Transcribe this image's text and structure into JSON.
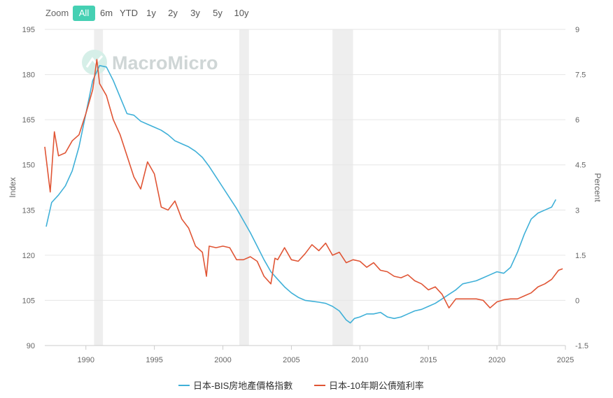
{
  "toolbar": {
    "zoom_label": "Zoom",
    "buttons": [
      {
        "label": "All",
        "active": true
      },
      {
        "label": "6m",
        "active": false
      },
      {
        "label": "YTD",
        "active": false
      },
      {
        "label": "1y",
        "active": false
      },
      {
        "label": "2y",
        "active": false
      },
      {
        "label": "3y",
        "active": false
      },
      {
        "label": "5y",
        "active": false
      },
      {
        "label": "10y",
        "active": false
      }
    ]
  },
  "watermark": "MacroMicro",
  "chart_data": {
    "type": "line",
    "x_axis": {
      "type": "date",
      "ticks": [
        "1990",
        "1995",
        "2000",
        "2005",
        "2010",
        "2015",
        "2020",
        "2025"
      ],
      "range": [
        1987.0,
        2025.0
      ]
    },
    "y_left": {
      "label": "Index",
      "ticks": [
        90,
        105,
        120,
        135,
        150,
        165,
        180,
        195
      ],
      "range": [
        90,
        195
      ]
    },
    "y_right": {
      "label": "Percent",
      "ticks": [
        "-1.5",
        "0",
        "1.5",
        "3",
        "4.5",
        "6",
        "7.5",
        "9"
      ],
      "range": [
        -1.5,
        9
      ]
    },
    "recessions": [
      [
        1990.6,
        1991.25
      ],
      [
        2001.2,
        2001.9
      ],
      [
        2008.0,
        2009.5
      ],
      [
        2020.1,
        2020.3
      ]
    ],
    "grid": true,
    "legend_position": "bottom",
    "series": [
      {
        "name": "日本-BIS房地產價格指數",
        "axis": "left",
        "color": "#3fb0d8",
        "points": [
          [
            1987.1,
            129.5
          ],
          [
            1987.5,
            137.5
          ],
          [
            1988.0,
            140
          ],
          [
            1988.5,
            143
          ],
          [
            1989.0,
            148
          ],
          [
            1989.5,
            156
          ],
          [
            1990.0,
            167
          ],
          [
            1990.5,
            178
          ],
          [
            1991.0,
            183
          ],
          [
            1991.5,
            182.5
          ],
          [
            1992.0,
            178
          ],
          [
            1992.5,
            172.5
          ],
          [
            1993.0,
            167
          ],
          [
            1993.5,
            166.5
          ],
          [
            1994.0,
            164.5
          ],
          [
            1994.5,
            163.5
          ],
          [
            1995.0,
            162.5
          ],
          [
            1995.5,
            161.5
          ],
          [
            1996.0,
            160
          ],
          [
            1996.5,
            158
          ],
          [
            1997.0,
            157
          ],
          [
            1997.5,
            156
          ],
          [
            1998.0,
            154.5
          ],
          [
            1998.5,
            152.5
          ],
          [
            1999.0,
            149.5
          ],
          [
            1999.5,
            146
          ],
          [
            2000.0,
            142.5
          ],
          [
            2000.5,
            139
          ],
          [
            2001.0,
            135.5
          ],
          [
            2001.5,
            131.5
          ],
          [
            2002.0,
            127.5
          ],
          [
            2002.5,
            123
          ],
          [
            2003.0,
            118.5
          ],
          [
            2003.5,
            114.5
          ],
          [
            2004.0,
            112
          ],
          [
            2004.5,
            109.5
          ],
          [
            2005.0,
            107.5
          ],
          [
            2005.5,
            106
          ],
          [
            2006.0,
            105
          ],
          [
            2006.5,
            104.7
          ],
          [
            2007.0,
            104.4
          ],
          [
            2007.5,
            104
          ],
          [
            2008.0,
            103
          ],
          [
            2008.5,
            101.5
          ],
          [
            2009.0,
            98.5
          ],
          [
            2009.3,
            97.5
          ],
          [
            2009.6,
            99
          ],
          [
            2010.0,
            99.5
          ],
          [
            2010.5,
            100.5
          ],
          [
            2011.0,
            100.5
          ],
          [
            2011.5,
            101
          ],
          [
            2012.0,
            99.5
          ],
          [
            2012.5,
            99
          ],
          [
            2013.0,
            99.5
          ],
          [
            2013.5,
            100.5
          ],
          [
            2014.0,
            101.5
          ],
          [
            2014.5,
            102
          ],
          [
            2015.0,
            103
          ],
          [
            2015.5,
            104
          ],
          [
            2016.0,
            105.5
          ],
          [
            2016.5,
            107
          ],
          [
            2017.0,
            108.5
          ],
          [
            2017.5,
            110.5
          ],
          [
            2018.0,
            111
          ],
          [
            2018.5,
            111.5
          ],
          [
            2019.0,
            112.5
          ],
          [
            2019.5,
            113.5
          ],
          [
            2020.0,
            114.5
          ],
          [
            2020.5,
            114
          ],
          [
            2021.0,
            116
          ],
          [
            2021.5,
            121
          ],
          [
            2022.0,
            127
          ],
          [
            2022.5,
            132
          ],
          [
            2023.0,
            134
          ],
          [
            2023.5,
            135
          ],
          [
            2024.0,
            136
          ],
          [
            2024.3,
            138.5
          ]
        ]
      },
      {
        "name": "日本-10年期公債殖利率",
        "axis": "right",
        "color": "#e05535",
        "points": [
          [
            1987.0,
            5.1
          ],
          [
            1987.4,
            3.6
          ],
          [
            1987.7,
            5.6
          ],
          [
            1988.0,
            4.8
          ],
          [
            1988.5,
            4.9
          ],
          [
            1989.0,
            5.3
          ],
          [
            1989.5,
            5.5
          ],
          [
            1990.0,
            6.2
          ],
          [
            1990.5,
            7.0
          ],
          [
            1990.8,
            8.0
          ],
          [
            1991.0,
            7.2
          ],
          [
            1991.5,
            6.8
          ],
          [
            1992.0,
            6.0
          ],
          [
            1992.5,
            5.5
          ],
          [
            1993.0,
            4.8
          ],
          [
            1993.5,
            4.1
          ],
          [
            1994.0,
            3.7
          ],
          [
            1994.5,
            4.6
          ],
          [
            1995.0,
            4.2
          ],
          [
            1995.5,
            3.1
          ],
          [
            1996.0,
            3.0
          ],
          [
            1996.5,
            3.3
          ],
          [
            1997.0,
            2.7
          ],
          [
            1997.5,
            2.4
          ],
          [
            1998.0,
            1.8
          ],
          [
            1998.5,
            1.6
          ],
          [
            1998.8,
            0.8
          ],
          [
            1999.0,
            1.8
          ],
          [
            1999.5,
            1.75
          ],
          [
            2000.0,
            1.8
          ],
          [
            2000.5,
            1.75
          ],
          [
            2001.0,
            1.35
          ],
          [
            2001.5,
            1.35
          ],
          [
            2002.0,
            1.45
          ],
          [
            2002.5,
            1.3
          ],
          [
            2003.0,
            0.8
          ],
          [
            2003.5,
            0.55
          ],
          [
            2003.8,
            1.4
          ],
          [
            2004.0,
            1.35
          ],
          [
            2004.5,
            1.75
          ],
          [
            2005.0,
            1.35
          ],
          [
            2005.5,
            1.3
          ],
          [
            2006.0,
            1.55
          ],
          [
            2006.5,
            1.85
          ],
          [
            2007.0,
            1.65
          ],
          [
            2007.5,
            1.9
          ],
          [
            2008.0,
            1.5
          ],
          [
            2008.5,
            1.6
          ],
          [
            2009.0,
            1.25
          ],
          [
            2009.5,
            1.35
          ],
          [
            2010.0,
            1.3
          ],
          [
            2010.5,
            1.1
          ],
          [
            2011.0,
            1.25
          ],
          [
            2011.5,
            1.0
          ],
          [
            2012.0,
            0.95
          ],
          [
            2012.5,
            0.8
          ],
          [
            2013.0,
            0.75
          ],
          [
            2013.5,
            0.85
          ],
          [
            2014.0,
            0.65
          ],
          [
            2014.5,
            0.55
          ],
          [
            2015.0,
            0.35
          ],
          [
            2015.5,
            0.45
          ],
          [
            2016.0,
            0.2
          ],
          [
            2016.5,
            -0.25
          ],
          [
            2017.0,
            0.05
          ],
          [
            2017.5,
            0.05
          ],
          [
            2018.0,
            0.05
          ],
          [
            2018.5,
            0.05
          ],
          [
            2019.0,
            0.0
          ],
          [
            2019.5,
            -0.25
          ],
          [
            2020.0,
            -0.05
          ],
          [
            2020.5,
            0.02
          ],
          [
            2021.0,
            0.05
          ],
          [
            2021.5,
            0.05
          ],
          [
            2022.0,
            0.15
          ],
          [
            2022.5,
            0.25
          ],
          [
            2023.0,
            0.45
          ],
          [
            2023.5,
            0.55
          ],
          [
            2024.0,
            0.7
          ],
          [
            2024.5,
            1.0
          ],
          [
            2024.8,
            1.05
          ]
        ]
      }
    ]
  }
}
